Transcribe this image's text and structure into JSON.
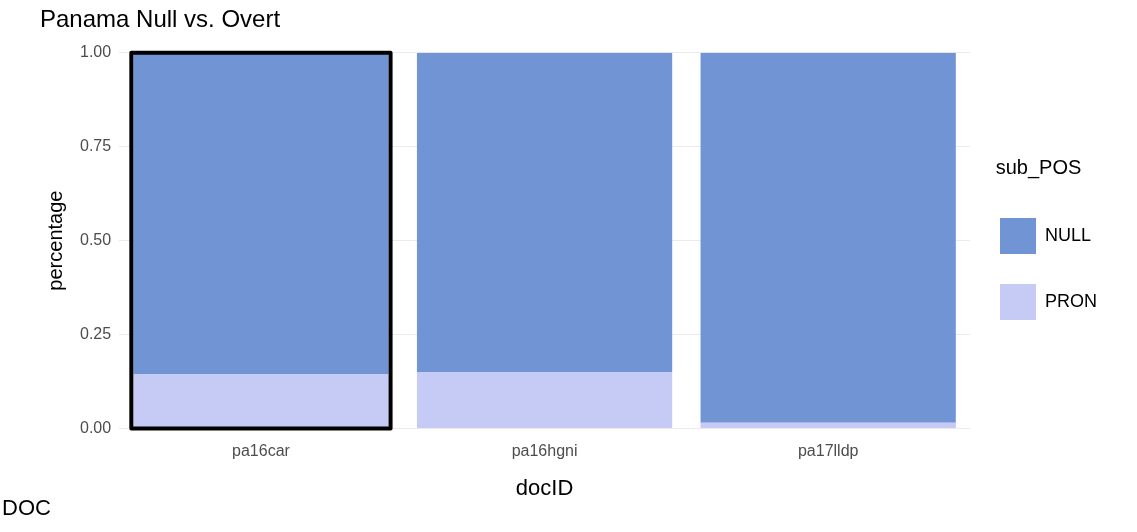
{
  "chart_data": {
    "type": "bar",
    "title": "Panama Null vs. Overt",
    "xlabel": "docID",
    "ylabel": "percentage",
    "legend_title": "sub_POS",
    "categories": [
      "pa16car",
      "pa16hgni",
      "pa17lldp"
    ],
    "stacked": true,
    "series": [
      {
        "name": "PRON",
        "color": "#c6cbf5",
        "values": [
          0.145,
          0.15,
          0.015
        ]
      },
      {
        "name": "NULL",
        "color": "#7094d4",
        "values": [
          0.855,
          0.85,
          0.985
        ]
      }
    ],
    "ylim": [
      0,
      1
    ],
    "yticks": [
      {
        "value": 0,
        "label": "0.00"
      },
      {
        "value": 0.25,
        "label": "0.25"
      },
      {
        "value": 0.5,
        "label": "0.50"
      },
      {
        "value": 0.75,
        "label": "0.75"
      },
      {
        "value": 1,
        "label": "1.00"
      }
    ],
    "grid": true,
    "legend": "right",
    "annotations": [
      "DOC"
    ]
  }
}
